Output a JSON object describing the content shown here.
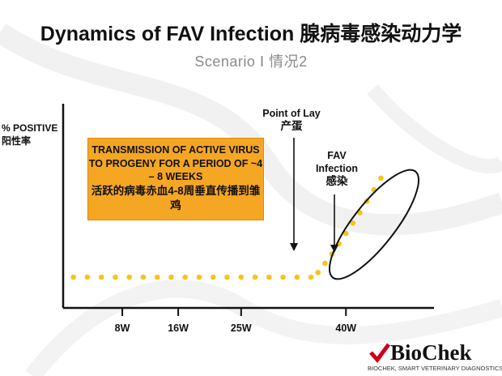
{
  "title": "Dynamics of FAV Infection 腺病毒感染动力学",
  "subtitle": "Scenario Ⅰ 情况2",
  "colors": {
    "accent": "#f5a623",
    "dot": "#f5c518",
    "axis": "#111111",
    "logo_red": "#d0021b"
  },
  "chart_data": {
    "type": "scatter",
    "title": "Dynamics of FAV Infection 腺病毒感染动力学",
    "ylabel_en": "% POSITIVE",
    "ylabel_cn": "阳性率",
    "xlabel": "",
    "x_ticks": [
      "8W",
      "16W",
      "25W",
      "40W"
    ],
    "x_tick_values": [
      8,
      16,
      25,
      40
    ],
    "xlim": [
      0,
      52
    ],
    "ylim": [
      0,
      100
    ],
    "grid": false,
    "legend": "none",
    "series": [
      {
        "points": [
          [
            1,
            0
          ],
          [
            3,
            0
          ],
          [
            5,
            0
          ],
          [
            7,
            0
          ],
          [
            9,
            0
          ],
          [
            11,
            0
          ],
          [
            13,
            0
          ],
          [
            15,
            0
          ],
          [
            17,
            0
          ],
          [
            19,
            0
          ],
          [
            21,
            0
          ],
          [
            23,
            0
          ],
          [
            25,
            0
          ],
          [
            27,
            0
          ],
          [
            29,
            0
          ],
          [
            31,
            0
          ],
          [
            33,
            0
          ],
          [
            35,
            0
          ],
          [
            36,
            4
          ],
          [
            37,
            12
          ],
          [
            38,
            20
          ],
          [
            39,
            29
          ],
          [
            40,
            38
          ],
          [
            41,
            47
          ],
          [
            42,
            56
          ],
          [
            43,
            66
          ],
          [
            44,
            76
          ],
          [
            45,
            86
          ]
        ]
      }
    ],
    "annotations": {
      "transmission_en": "TRANSMISSION OF ACTIVE VIRUS TO PROGENY FOR A PERIOD OF ~4 – 8 WEEKS",
      "transmission_cn": "活跃的病毒赤血4-8周垂直传播到雏鸡",
      "point_of_lay_en": "Point of Lay",
      "point_of_lay_cn": "产蛋",
      "fav_en": "FAV Infection",
      "fav_cn": "感染"
    }
  },
  "logo": {
    "brand": "BioChek",
    "tagline": "BIOCHEK, SMART VETERINARY DIAGNOSTICS"
  }
}
